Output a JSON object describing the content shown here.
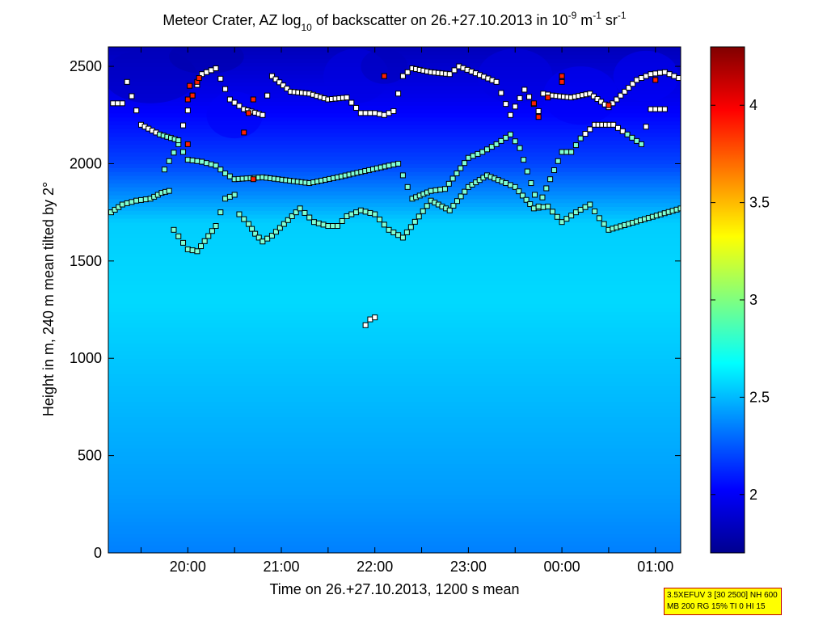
{
  "chart_data": {
    "type": "heatmap",
    "title": {
      "main": "Meteor Crater, AZ log",
      "sub10": "10",
      "mid": " of backscatter on 26.+27.10.2013 in 10",
      "exp9": "-9",
      "unit_m": " m",
      "exp_m": "-1",
      "unit_sr": " sr",
      "exp_sr": "-1"
    },
    "xlabel": "Time on 26.+27.10.2013, 1200 s mean",
    "ylabel": "Height in m, 240 m mean tilted by 2°",
    "x_range_hours": [
      19.15,
      25.27
    ],
    "y_range": [
      0,
      2600
    ],
    "x_ticks": [
      {
        "hour": 20,
        "label": "20:00"
      },
      {
        "hour": 21,
        "label": "21:00"
      },
      {
        "hour": 22,
        "label": "22:00"
      },
      {
        "hour": 23,
        "label": "23:00"
      },
      {
        "hour": 24,
        "label": "00:00"
      },
      {
        "hour": 25,
        "label": "01:00"
      }
    ],
    "y_ticks": [
      {
        "value": 0,
        "label": "0"
      },
      {
        "value": 500,
        "label": "500"
      },
      {
        "value": 1000,
        "label": "1000"
      },
      {
        "value": 1500,
        "label": "1500"
      },
      {
        "value": 2000,
        "label": "2000"
      },
      {
        "value": 2500,
        "label": "2500"
      }
    ],
    "colorbar": {
      "range": [
        1.7,
        4.3
      ],
      "ticks": [
        {
          "value": 2,
          "label": "2"
        },
        {
          "value": 2.5,
          "label": "2.5"
        },
        {
          "value": 3,
          "label": "3"
        },
        {
          "value": 3.5,
          "label": "3.5"
        },
        {
          "value": 4,
          "label": "4"
        }
      ],
      "colormap": "jet"
    },
    "background_profile": [
      {
        "height": 0,
        "value": 2.35
      },
      {
        "height": 300,
        "value": 2.42
      },
      {
        "height": 800,
        "value": 2.5
      },
      {
        "height": 1300,
        "value": 2.58
      },
      {
        "height": 1700,
        "value": 2.55
      },
      {
        "height": 2000,
        "value": 2.2
      },
      {
        "height": 2300,
        "value": 2.0
      },
      {
        "height": 2600,
        "value": 1.85
      }
    ],
    "layer_series": [
      {
        "name": "lowest layer",
        "points": [
          [
            19.18,
            1750
          ],
          [
            19.3,
            1790
          ],
          [
            19.45,
            1810
          ],
          [
            19.6,
            1820
          ],
          [
            19.72,
            1850
          ],
          [
            19.8,
            1860
          ],
          [
            19.85,
            1660
          ],
          [
            20.0,
            1560
          ],
          [
            20.1,
            1550
          ],
          [
            20.3,
            1680
          ],
          [
            20.4,
            1820
          ],
          [
            20.5,
            1840
          ],
          [
            20.55,
            1740
          ],
          [
            20.65,
            1690
          ],
          [
            20.72,
            1640
          ],
          [
            20.8,
            1600
          ],
          [
            20.9,
            1630
          ],
          [
            21.2,
            1770
          ],
          [
            21.35,
            1700
          ],
          [
            21.5,
            1680
          ],
          [
            21.6,
            1680
          ],
          [
            21.7,
            1730
          ],
          [
            21.85,
            1760
          ],
          [
            22.0,
            1740
          ],
          [
            22.15,
            1660
          ],
          [
            22.3,
            1620
          ],
          [
            22.6,
            1810
          ],
          [
            22.8,
            1760
          ],
          [
            23.0,
            1880
          ],
          [
            23.2,
            1940
          ],
          [
            23.4,
            1900
          ],
          [
            23.5,
            1880
          ],
          [
            23.7,
            1770
          ],
          [
            23.85,
            1780
          ],
          [
            24.0,
            1700
          ],
          [
            24.15,
            1750
          ],
          [
            24.3,
            1790
          ],
          [
            24.4,
            1720
          ],
          [
            24.5,
            1660
          ],
          [
            25.27,
            1770
          ]
        ]
      },
      {
        "name": "second layer",
        "points": [
          [
            19.75,
            1970
          ],
          [
            19.9,
            2100
          ],
          [
            20.0,
            2020
          ],
          [
            20.15,
            2010
          ],
          [
            20.3,
            1990
          ],
          [
            20.4,
            1950
          ],
          [
            20.5,
            1920
          ],
          [
            20.8,
            1930
          ],
          [
            21.3,
            1900
          ],
          [
            21.6,
            1930
          ],
          [
            22.15,
            1990
          ],
          [
            22.25,
            2000
          ],
          [
            22.4,
            1820
          ],
          [
            22.6,
            1860
          ],
          [
            22.75,
            1870
          ],
          [
            23.0,
            2030
          ],
          [
            23.15,
            2060
          ],
          [
            23.3,
            2100
          ],
          [
            23.45,
            2150
          ],
          [
            23.55,
            2080
          ],
          [
            23.75,
            1780
          ],
          [
            24.0,
            2060
          ],
          [
            24.1,
            2060
          ],
          [
            24.2,
            2130
          ],
          [
            24.35,
            2200
          ],
          [
            24.55,
            2200
          ],
          [
            24.7,
            2150
          ],
          [
            24.85,
            2100
          ],
          [
            24.95,
            2280
          ],
          [
            25.1,
            2280
          ]
        ]
      },
      {
        "name": "third layer",
        "points": [
          [
            19.2,
            2310
          ],
          [
            19.3,
            2310
          ],
          [
            19.35,
            2420
          ],
          [
            19.5,
            2200
          ],
          [
            19.7,
            2150
          ],
          [
            19.9,
            2120
          ],
          [
            20.05,
            2350
          ],
          [
            20.15,
            2460
          ],
          [
            20.3,
            2490
          ],
          [
            20.45,
            2330
          ],
          [
            20.6,
            2280
          ],
          [
            20.8,
            2250
          ],
          [
            20.9,
            2450
          ],
          [
            21.1,
            2370
          ],
          [
            21.3,
            2360
          ],
          [
            21.5,
            2330
          ],
          [
            21.7,
            2340
          ],
          [
            21.85,
            2260
          ],
          [
            22.0,
            2260
          ],
          [
            22.1,
            2250
          ],
          [
            22.2,
            2270
          ],
          [
            22.3,
            2450
          ],
          [
            22.4,
            2490
          ],
          [
            22.6,
            2470
          ],
          [
            22.8,
            2460
          ],
          [
            22.9,
            2500
          ],
          [
            23.3,
            2420
          ],
          [
            23.45,
            2250
          ],
          [
            23.6,
            2380
          ],
          [
            23.75,
            2270
          ],
          [
            23.8,
            2360
          ],
          [
            23.9,
            2350
          ],
          [
            24.1,
            2340
          ],
          [
            24.3,
            2360
          ],
          [
            24.5,
            2290
          ],
          [
            24.8,
            2430
          ],
          [
            24.95,
            2460
          ],
          [
            25.1,
            2470
          ],
          [
            25.25,
            2440
          ]
        ]
      },
      {
        "name": "isolated",
        "points": [
          [
            21.9,
            1170
          ],
          [
            21.95,
            1200
          ],
          [
            22.0,
            1210
          ]
        ]
      }
    ],
    "high_value_series": [
      {
        "name": "values above 3.5",
        "points": [
          [
            20.0,
            2100
          ],
          [
            20.0,
            2330
          ],
          [
            20.02,
            2400
          ],
          [
            20.05,
            2350
          ],
          [
            20.1,
            2420
          ],
          [
            20.12,
            2440
          ],
          [
            20.6,
            2160
          ],
          [
            20.65,
            2260
          ],
          [
            20.7,
            2330
          ],
          [
            20.7,
            1920
          ],
          [
            22.1,
            2450
          ],
          [
            23.7,
            2310
          ],
          [
            23.75,
            2240
          ],
          [
            23.85,
            2340
          ],
          [
            24.0,
            2450
          ],
          [
            24.0,
            2420
          ],
          [
            24.5,
            2300
          ],
          [
            25.0,
            2430
          ]
        ]
      }
    ],
    "annotation_lines": [
      "3.5XEFUV 3 [30 2500] NH 600",
      "MB 200 RG 15% TI 0 HI 15"
    ]
  }
}
